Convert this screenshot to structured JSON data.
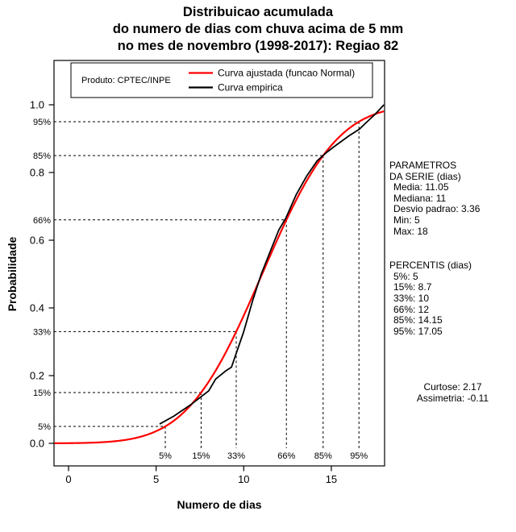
{
  "title": {
    "line1": "Distribuicao acumulada",
    "line2": "do numero de dias com chuva acima de 5 mm",
    "line3": "no mes de novembro (1998-2017): Regiao 82"
  },
  "chart_data": {
    "type": "line",
    "title": "Distribuicao acumulada do numero de dias com chuva acima de 5 mm no mes de novembro (1998-2017): Regiao 82",
    "xlabel": "Numero de dias",
    "ylabel": "Probabilidade",
    "xlim": [
      -0.8,
      18.3
    ],
    "ylim": [
      0.0,
      1.0
    ],
    "x_ticks": [
      0,
      5,
      10,
      15
    ],
    "y_tick_values": [
      0.0,
      0.2,
      0.4,
      0.6,
      0.8,
      1.0
    ],
    "y_tick_labels": [
      "0.0",
      "0.2",
      "0.4",
      "0.6",
      "0.8",
      "1.0"
    ],
    "grid": false,
    "legend_position": "top-inside",
    "legend": {
      "note": "Produto: CPTEC/INPE"
    },
    "series": [
      {
        "name": "Curva ajustada (funcao Normal)",
        "color": "#ff0000",
        "model": "normal_cdf",
        "mean": 11.05,
        "sd": 3.36,
        "x_range": [
          -0.8,
          18
        ]
      },
      {
        "name": "Curva empirica",
        "color": "#000000",
        "model": "empirical",
        "points": [
          [
            5.2,
            0.057
          ],
          [
            6,
            0.08
          ],
          [
            7,
            0.115
          ],
          [
            8,
            0.155
          ],
          [
            8.4,
            0.19
          ],
          [
            9,
            0.215
          ],
          [
            9.3,
            0.225
          ],
          [
            10,
            0.33
          ],
          [
            10.5,
            0.42
          ],
          [
            11,
            0.5
          ],
          [
            11.5,
            0.565
          ],
          [
            12,
            0.63
          ],
          [
            12.4,
            0.665
          ],
          [
            13,
            0.735
          ],
          [
            13.6,
            0.79
          ],
          [
            14.2,
            0.835
          ],
          [
            14.7,
            0.858
          ],
          [
            15.2,
            0.878
          ],
          [
            16,
            0.908
          ],
          [
            16.6,
            0.928
          ],
          [
            17,
            0.948
          ],
          [
            17.5,
            0.972
          ],
          [
            18,
            1.0
          ]
        ]
      }
    ],
    "percentile_guides": {
      "levels": [
        0.05,
        0.15,
        0.33,
        0.66,
        0.85,
        0.95
      ],
      "labels": [
        "5%",
        "15%",
        "33%",
        "66%",
        "85%",
        "95%"
      ]
    }
  },
  "side_panel": {
    "params_header1": "PARAMETROS",
    "params_header2": "DA SERIE (dias)",
    "params": [
      "Media: 11.05",
      "Mediana: 11",
      "Desvio padrao: 3.36",
      "Min: 5",
      "Max: 18"
    ],
    "percentis_header": "PERCENTIS (dias)",
    "percentis": [
      "5%: 5",
      "15%: 8.7",
      "33%: 10",
      "66%: 12",
      "85%: 14.15",
      "95%: 17.05"
    ],
    "kurtosis": "Curtose: 2.17",
    "skewness": "Assimetria: -0.11"
  }
}
